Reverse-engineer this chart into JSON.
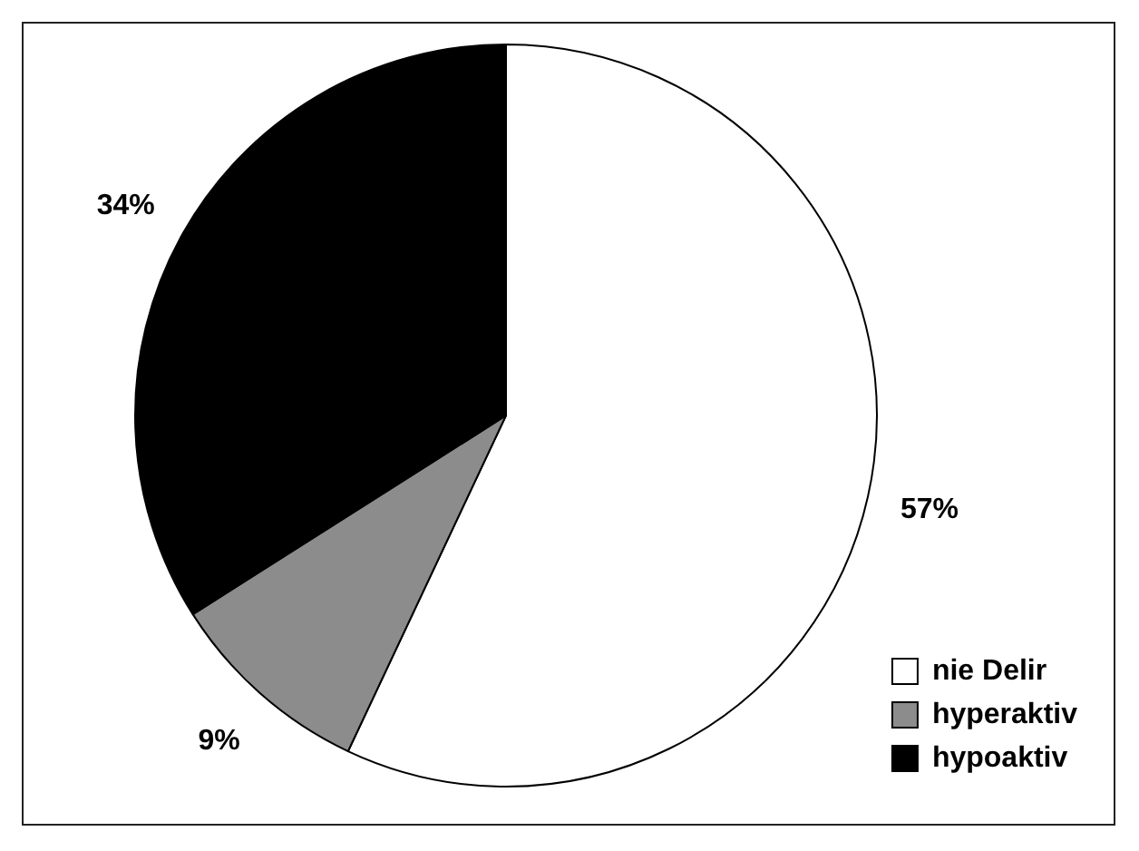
{
  "chart_data": {
    "type": "pie",
    "categories": [
      "nie Delir",
      "hyperaktiv",
      "hypoaktiv"
    ],
    "values": [
      57,
      9,
      34
    ],
    "colors": [
      "#ffffff",
      "#8c8c8c",
      "#000000"
    ],
    "value_labels": [
      "57%",
      "9%",
      "34%"
    ],
    "legend": "bottom right"
  }
}
